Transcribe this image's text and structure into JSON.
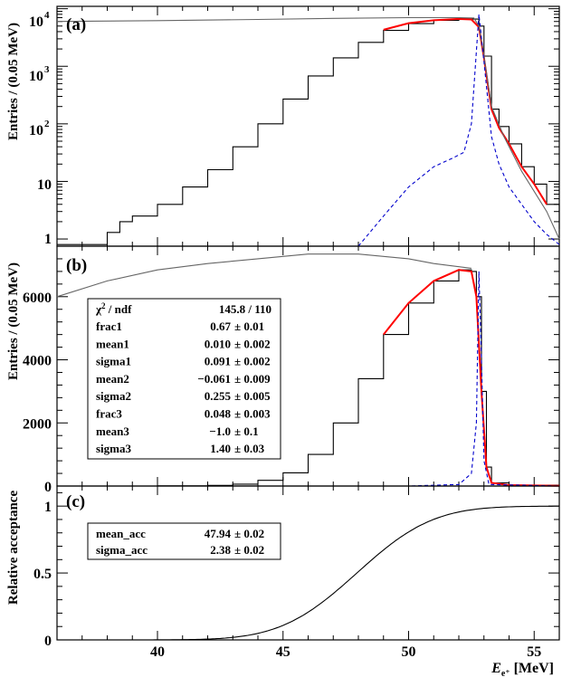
{
  "chart_data": [
    {
      "panel": "a",
      "type": "line",
      "panel_label": "(a)",
      "ylabel": "Entries / (0.05 MeV)",
      "yscale": "log",
      "xlim": [
        36,
        56
      ],
      "ylim": [
        0.75,
        11000
      ],
      "ytick_labels": [
        "1",
        "10",
        "10",
        "10",
        "10"
      ],
      "ytick_exponents": [
        "",
        "",
        "2",
        "3",
        "4"
      ],
      "series": [
        {
          "role": "data-histogram",
          "color": "#000000",
          "x": [
            36,
            37,
            38,
            38.5,
            39,
            40,
            41,
            42,
            43,
            44,
            45,
            46,
            47,
            48,
            49,
            50,
            51,
            52,
            52.5,
            52.8,
            53.0,
            53.3,
            53.6,
            54,
            54.5,
            55,
            55.5,
            56
          ],
          "y": [
            0.8,
            0.8,
            1.3,
            2.0,
            2.5,
            4,
            8,
            16,
            40,
            100,
            270,
            680,
            1400,
            2600,
            4200,
            5500,
            6300,
            6700,
            6600,
            5000,
            1500,
            180,
            90,
            45,
            18,
            9,
            4,
            1.5
          ]
        },
        {
          "role": "fit",
          "color": "#ff0000",
          "x": [
            49,
            50,
            51,
            52,
            52.5,
            52.8,
            53.0,
            53.3,
            53.6,
            54,
            54.5,
            55,
            55.5
          ],
          "y": [
            4300,
            5600,
            6300,
            6650,
            6500,
            4800,
            1400,
            180,
            85,
            45,
            18,
            9,
            4
          ]
        },
        {
          "role": "acceptance-corrected",
          "color": "#666666",
          "x": [
            36,
            40,
            44,
            47,
            50,
            52,
            52.6,
            52.8,
            53.0,
            53.3,
            53.8,
            54.5,
            55.5,
            56
          ],
          "y": [
            6000,
            6200,
            6500,
            6800,
            7000,
            7000,
            6900,
            5000,
            1500,
            200,
            60,
            15,
            3,
            1
          ]
        },
        {
          "role": "signal-component",
          "color": "#0000cc",
          "x": [
            48,
            49,
            50,
            51,
            51.8,
            52.2,
            52.5,
            52.8,
            53.0,
            53.3,
            53.6,
            54,
            54.5,
            55,
            55.5,
            56
          ],
          "y": [
            0.75,
            2.5,
            8,
            18,
            26,
            32,
            100,
            8000,
            1200,
            60,
            20,
            8,
            4,
            2,
            1.2,
            0.8
          ]
        }
      ]
    },
    {
      "panel": "b",
      "type": "line",
      "panel_label": "(b)",
      "ylabel": "Entries / (0.05 MeV)",
      "yscale": "linear",
      "xlim": [
        36,
        56
      ],
      "ylim": [
        0,
        7600
      ],
      "yticks": [
        0,
        2000,
        4000,
        6000
      ],
      "series": [
        {
          "role": "data-histogram",
          "color": "#000000",
          "x": [
            36,
            40,
            42,
            43,
            44,
            45,
            46,
            47,
            48,
            49,
            50,
            51,
            52,
            52.5,
            52.7,
            52.9,
            53.1,
            53.3,
            54,
            56
          ],
          "y": [
            0,
            5,
            20,
            60,
            180,
            420,
            1000,
            2000,
            3400,
            4800,
            5800,
            6500,
            6850,
            6800,
            6000,
            3000,
            600,
            100,
            30,
            5
          ]
        },
        {
          "role": "fit",
          "color": "#ff0000",
          "x": [
            49,
            50,
            51,
            52,
            52.5,
            52.7,
            52.9,
            53.1,
            53.3,
            54,
            56
          ],
          "y": [
            4800,
            5800,
            6500,
            6850,
            6800,
            6000,
            3000,
            600,
            100,
            30,
            5
          ]
        },
        {
          "role": "acceptance-corrected",
          "color": "#666666",
          "x": [
            36,
            38,
            40,
            42,
            44,
            46,
            48,
            50,
            51,
            52,
            52.5
          ],
          "y": [
            6000,
            6500,
            6850,
            7050,
            7200,
            7350,
            7350,
            7200,
            7050,
            6950,
            6900
          ]
        },
        {
          "role": "signal-component",
          "color": "#0000cc",
          "x": [
            36,
            50,
            52,
            52.5,
            52.7,
            52.8,
            52.9,
            53.0,
            53.2,
            56
          ],
          "y": [
            0,
            0,
            50,
            400,
            2000,
            6800,
            4000,
            800,
            50,
            0
          ]
        }
      ],
      "stats": {
        "header_label": "χ",
        "header_sup": "2",
        "header_rest": " / ndf",
        "header_value": "145.8 / 110",
        "rows": [
          {
            "label": "frac1",
            "value": "0.67",
            "error": "± 0.01"
          },
          {
            "label": "mean1",
            "value": "0.010",
            "error": "± 0.002"
          },
          {
            "label": "sigma1",
            "value": "0.091",
            "error": "± 0.002"
          },
          {
            "label": "mean2",
            "value": "−0.061",
            "error": "± 0.009"
          },
          {
            "label": "sigma2",
            "value": "0.255",
            "error": "± 0.005"
          },
          {
            "label": "frac3",
            "value": "0.048",
            "error": "± 0.003"
          },
          {
            "label": "mean3",
            "value": "−1.0",
            "error": "± 0.1"
          },
          {
            "label": "sigma3",
            "value": "1.40",
            "error": "± 0.03"
          }
        ]
      }
    },
    {
      "panel": "c",
      "type": "line",
      "panel_label": "(c)",
      "ylabel": "Relative acceptance",
      "yscale": "linear",
      "xlim": [
        36,
        56
      ],
      "ylim": [
        0,
        1.15
      ],
      "yticks": [
        0,
        0.5,
        1
      ],
      "ytick_labels": [
        "0",
        "0.5",
        "1"
      ],
      "xticks": [
        40,
        45,
        50,
        55
      ],
      "xtick_labels": [
        "40",
        "45",
        "50",
        "55"
      ],
      "xlabel": "E",
      "xlabel_sub": "e⁺",
      "xlabel_unit": " [MeV]",
      "series": [
        {
          "role": "acceptance",
          "color": "#000000",
          "function": "erf",
          "mean": 47.94,
          "sigma": 2.38
        }
      ],
      "stats": {
        "rows": [
          {
            "label": "mean_acc",
            "value": "47.94",
            "error": "± 0.02"
          },
          {
            "label": "sigma_acc",
            "value": "2.38",
            "error": "± 0.02"
          }
        ]
      }
    }
  ]
}
